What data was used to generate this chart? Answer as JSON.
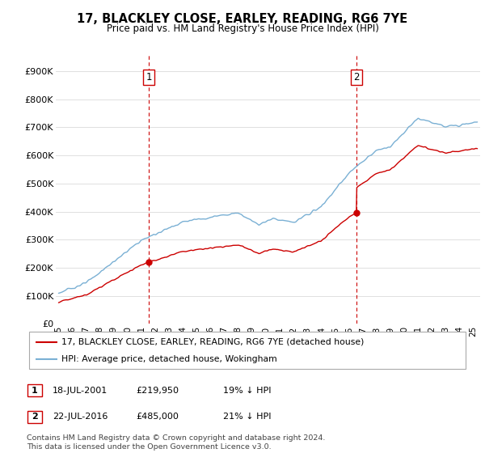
{
  "title": "17, BLACKLEY CLOSE, EARLEY, READING, RG6 7YE",
  "subtitle": "Price paid vs. HM Land Registry's House Price Index (HPI)",
  "ylabel_ticks": [
    "£0",
    "£100K",
    "£200K",
    "£300K",
    "£400K",
    "£500K",
    "£600K",
    "£700K",
    "£800K",
    "£900K"
  ],
  "ytick_values": [
    0,
    100000,
    200000,
    300000,
    400000,
    500000,
    600000,
    700000,
    800000,
    900000
  ],
  "ylim": [
    0,
    960000
  ],
  "xlim_start": 1994.8,
  "xlim_end": 2025.5,
  "sale1_date": 2001.54,
  "sale1_price": 219950,
  "sale1_label": "1",
  "sale2_date": 2016.55,
  "sale2_price": 485000,
  "sale2_label": "2",
  "legend_line1": "17, BLACKLEY CLOSE, EARLEY, READING, RG6 7YE (detached house)",
  "legend_line2": "HPI: Average price, detached house, Wokingham",
  "table_row1": [
    "1",
    "18-JUL-2001",
    "£219,950",
    "19% ↓ HPI"
  ],
  "table_row2": [
    "2",
    "22-JUL-2016",
    "£485,000",
    "21% ↓ HPI"
  ],
  "footnote": "Contains HM Land Registry data © Crown copyright and database right 2024.\nThis data is licensed under the Open Government Licence v3.0.",
  "hpi_color": "#7ab0d4",
  "price_color": "#cc0000",
  "vline_color": "#cc0000",
  "background_color": "#ffffff",
  "grid_color": "#e0e0e0"
}
